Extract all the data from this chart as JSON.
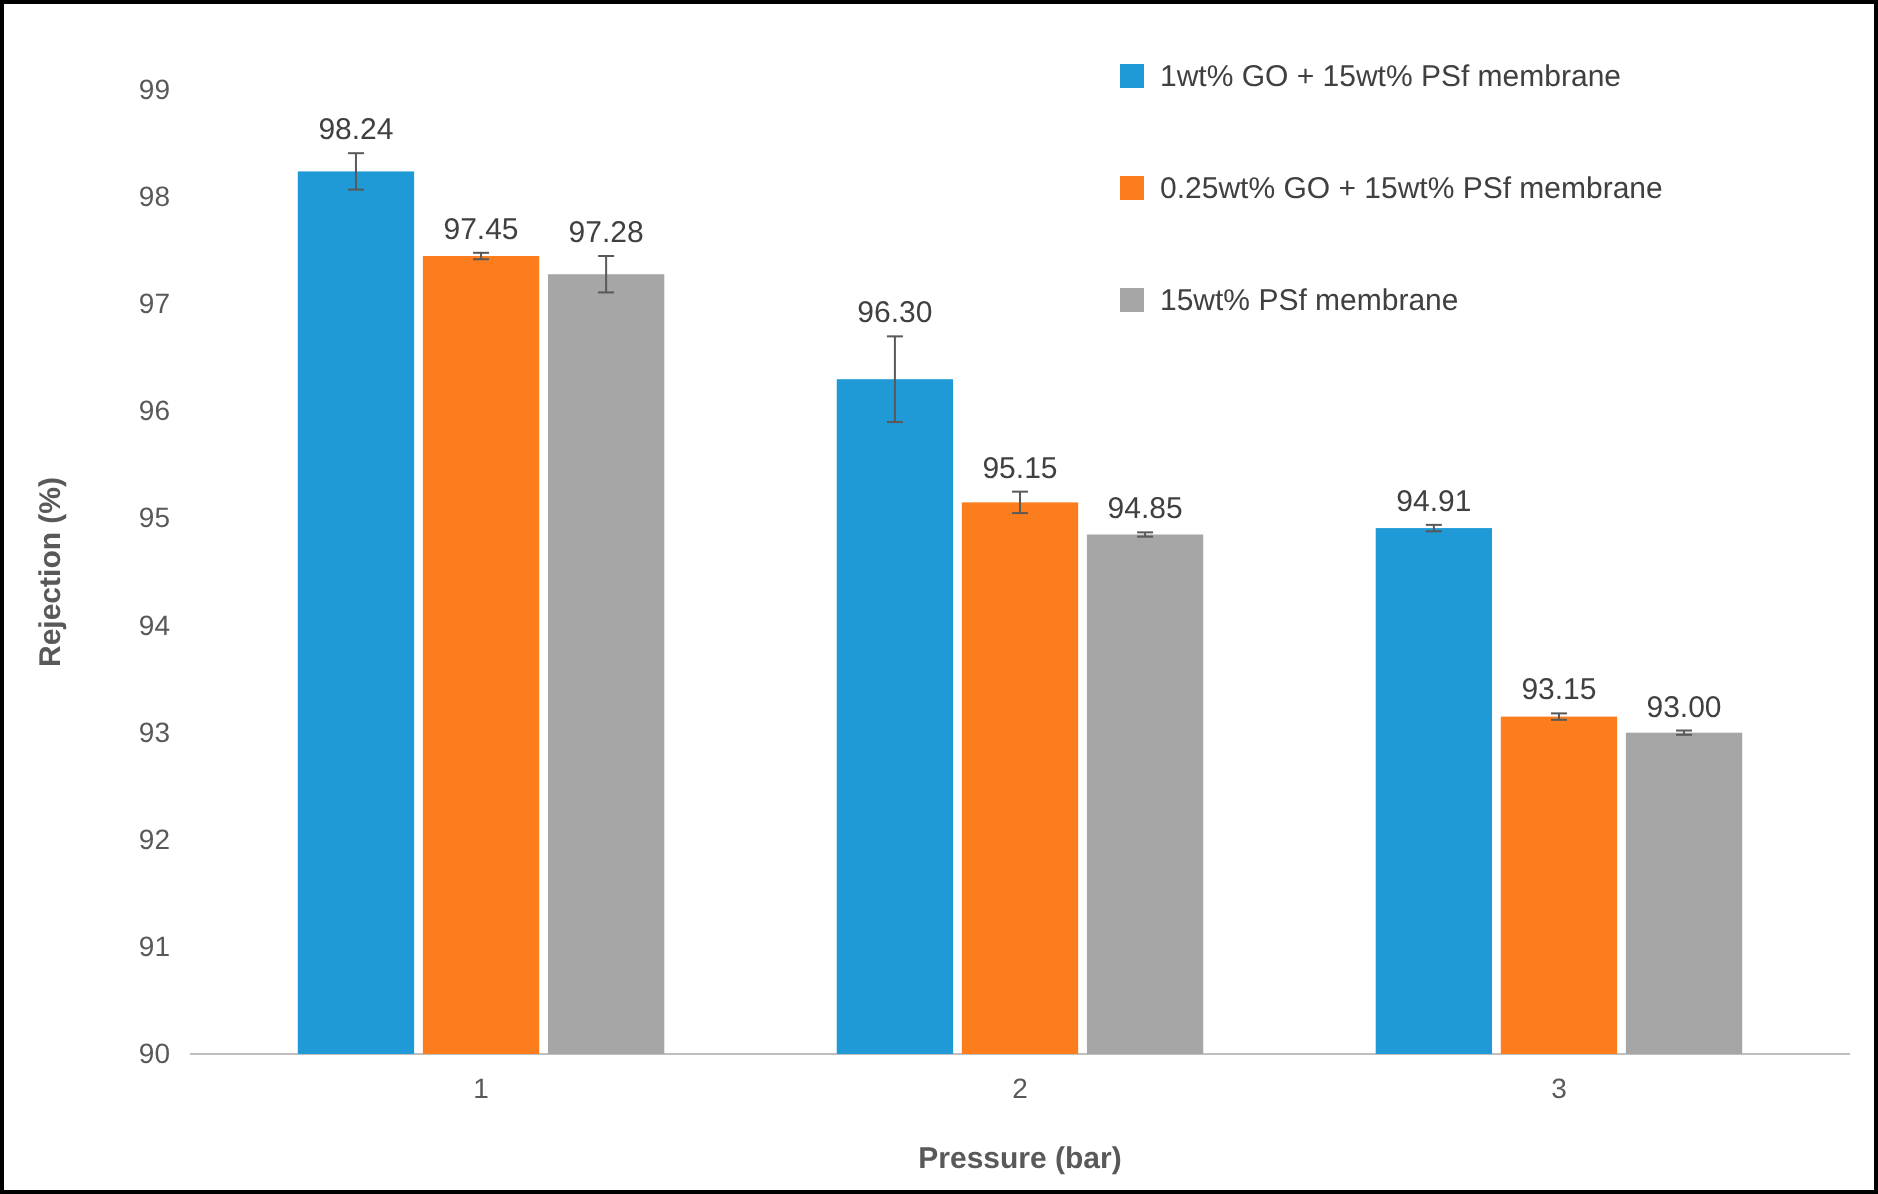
{
  "chart_data": {
    "type": "bar",
    "xlabel": "Pressure (bar)",
    "ylabel": "Rejection (%)",
    "categories": [
      "1",
      "2",
      "3"
    ],
    "series": [
      {
        "name": "1wt% GO + 15wt% PSf membrane",
        "color": "#1f9ad6",
        "values": [
          98.24,
          96.3,
          94.91
        ],
        "errors": [
          0.17,
          0.4,
          0.03
        ],
        "value_labels": [
          "98.24",
          "96.30",
          "94.91"
        ]
      },
      {
        "name": "0.25wt% GO + 15wt% PSf membrane",
        "color": "#fb7d1d",
        "values": [
          97.45,
          95.15,
          93.15
        ],
        "errors": [
          0.03,
          0.1,
          0.03
        ],
        "value_labels": [
          "97.45",
          "95.15",
          "93.15"
        ]
      },
      {
        "name": "15wt% PSf membrane",
        "color": "#a6a6a6",
        "values": [
          97.28,
          94.85,
          93.0
        ],
        "errors": [
          0.17,
          0.02,
          0.02
        ],
        "value_labels": [
          "97.28",
          "94.85",
          "93.00"
        ]
      }
    ],
    "ylim": [
      90,
      99
    ],
    "yticks": [
      90,
      91,
      92,
      93,
      94,
      95,
      96,
      97,
      98,
      99
    ],
    "grid": false,
    "legend": "top right"
  }
}
